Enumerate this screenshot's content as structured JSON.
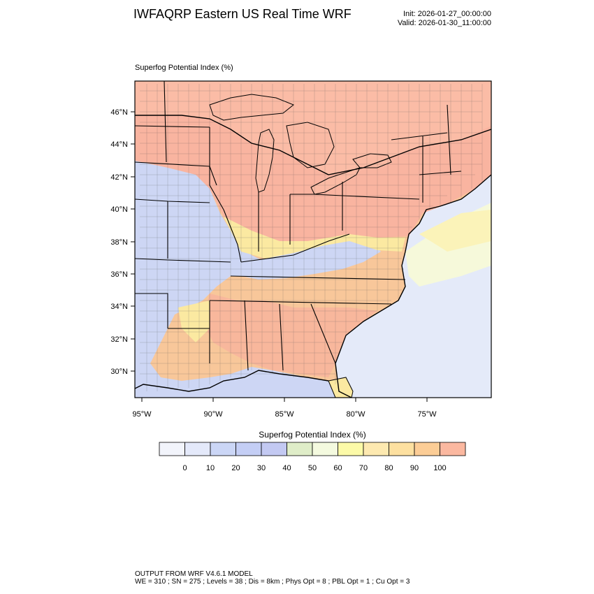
{
  "header": {
    "title": "IWFAQRP Eastern US Real Time WRF",
    "init": "Init: 2026-01-27_00:00:00",
    "valid": "Valid: 2026-01-30_11:00:00"
  },
  "panel": {
    "title": "Superfog Potential Index   (%)"
  },
  "map": {
    "lat_labels": [
      "46°N",
      "44°N",
      "42°N",
      "40°N",
      "38°N",
      "36°N",
      "34°N",
      "32°N",
      "30°N"
    ],
    "lon_labels": [
      "95°W",
      "90°W",
      "85°W",
      "80°W",
      "75°W"
    ],
    "colors": {
      "ocean_low": "#e4eaf9",
      "blue_low": "#cdd6f4",
      "high_salmon": "#f9b4a0",
      "mid_orange": "#f8c79a",
      "yellow": "#fbe9a1",
      "pale_yellow": "#fbf6c6",
      "land_blank": "#f6f4e8"
    }
  },
  "colorbar": {
    "title": "Superfog Potential Index  (%)",
    "tick_labels": [
      "0",
      "10",
      "20",
      "30",
      "40",
      "50",
      "60",
      "70",
      "80",
      "90",
      "100"
    ],
    "colors": [
      "#f2f4fb",
      "#e4e9fa",
      "#cbd6f6",
      "#c4cef5",
      "#c3c9f2",
      "#dfedc8",
      "#f4fadf",
      "#fcfaa8",
      "#fde9b0",
      "#fde0a0",
      "#fccd96",
      "#fbb8a0"
    ]
  },
  "footer": {
    "line1": "OUTPUT FROM WRF V4.6.1 MODEL",
    "line2": "WE = 310 ; SN = 275 ; Levels = 38 ; Dis = 8km ; Phys Opt = 8 ; PBL Opt = 1 ; Cu Opt = 3"
  }
}
